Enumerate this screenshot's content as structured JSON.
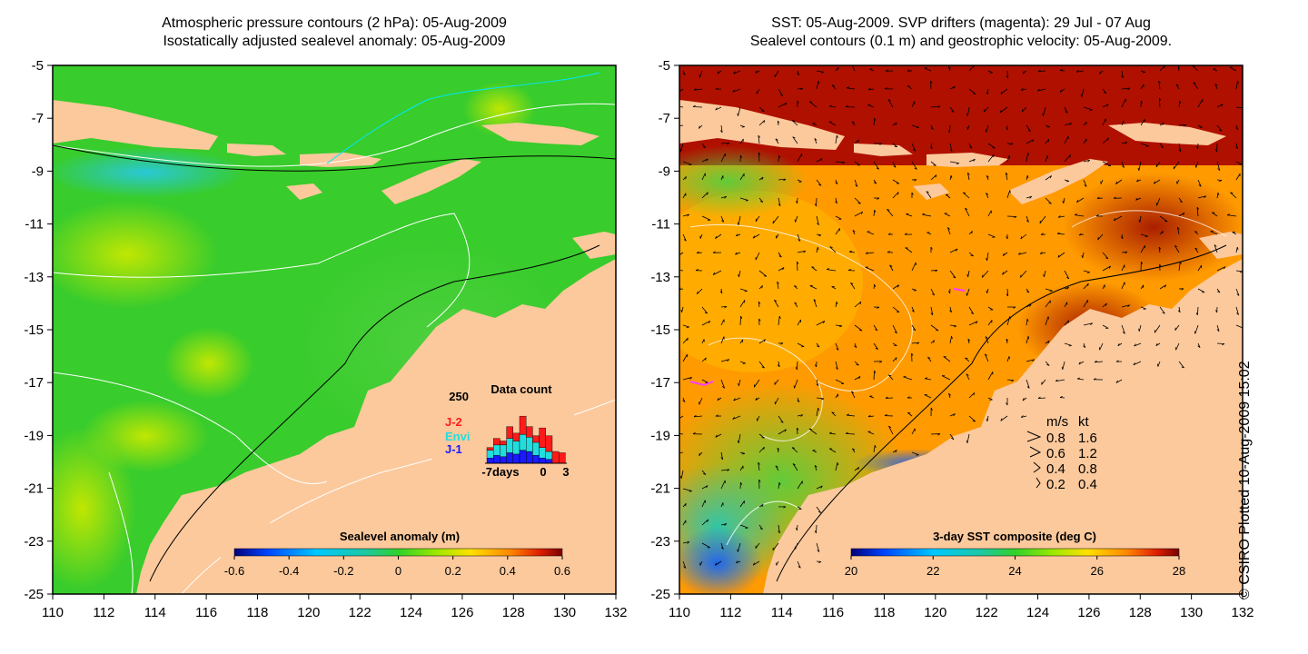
{
  "left_panel": {
    "title_line1": "Atmospheric pressure contours (2 hPa): 05-Aug-2009",
    "title_line2": "Isostatically adjusted sealevel anomaly: 05-Aug-2009",
    "colorbar_title": "Sealevel anomaly (m)",
    "colorbar_ticks": [
      "-0.6",
      "-0.4",
      "-0.2",
      "0",
      "0.2",
      "0.4",
      "0.6"
    ],
    "inset": {
      "title": "Data count",
      "ymax_label": "250",
      "legend": [
        {
          "name": "J-2",
          "color": "#ff1a1a"
        },
        {
          "name": "Envi",
          "color": "#22dddd"
        },
        {
          "name": "J-1",
          "color": "#1a1aff"
        }
      ],
      "xlabels": [
        "-7days",
        "0",
        "3"
      ],
      "counts_j1": [
        20,
        30,
        25,
        40,
        35,
        50,
        45,
        30,
        20,
        15,
        0,
        0
      ],
      "counts_envi": [
        30,
        40,
        45,
        55,
        50,
        60,
        55,
        50,
        40,
        30,
        0,
        0
      ],
      "counts_j2": [
        10,
        25,
        15,
        45,
        30,
        70,
        40,
        25,
        75,
        60,
        45,
        40
      ]
    }
  },
  "right_panel": {
    "title_line1": "SST: 05-Aug-2009. SVP drifters (magenta): 29 Jul - 07 Aug",
    "title_line2": "Sealevel contours (0.1 m) and geostrophic velocity: 05-Aug-2009.",
    "colorbar_title": "3-day SST composite (deg C)",
    "colorbar_ticks": [
      "20",
      "22",
      "24",
      "26",
      "28"
    ],
    "legend_header": [
      "m/s",
      "kt"
    ],
    "legend_rows": [
      [
        "0.8",
        "1.6"
      ],
      [
        "0.6",
        "1.2"
      ],
      [
        "0.4",
        "0.8"
      ],
      [
        "0.2",
        "0.4"
      ]
    ]
  },
  "axes": {
    "y_ticks": [
      "-5",
      "-7",
      "-9",
      "-11",
      "-13",
      "-15",
      "-17",
      "-19",
      "-21",
      "-23",
      "-25"
    ],
    "x_ticks": [
      "110",
      "112",
      "114",
      "116",
      "118",
      "120",
      "122",
      "124",
      "126",
      "128",
      "130",
      "132"
    ]
  },
  "credit": "© CSIRO Plotted 10-Aug-2009 15:02",
  "colors": {
    "land": "#fcc99c",
    "sla_base": "#38cc2c",
    "sst_base": "#ff9a00"
  }
}
